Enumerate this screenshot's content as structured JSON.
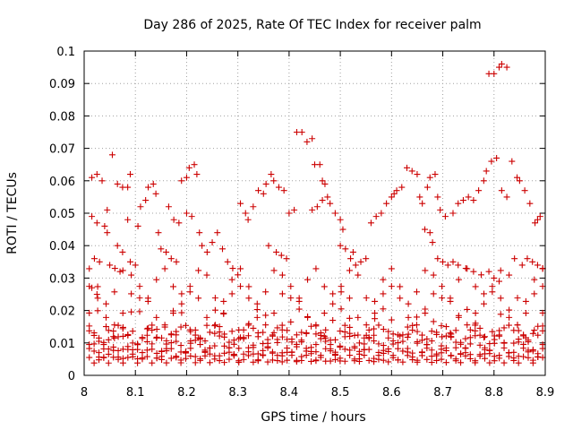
{
  "chart_data": {
    "type": "scatter",
    "title": "Day 286 of 2025, Rate Of TEC Index for receiver palm",
    "xlabel": "GPS time / hours",
    "ylabel": "ROTI / TECUs",
    "xlim": [
      8.0,
      8.9
    ],
    "ylim": [
      0.0,
      0.1
    ],
    "xticks": [
      "8",
      "8.1",
      "8.2",
      "8.3",
      "8.4",
      "8.5",
      "8.6",
      "8.7",
      "8.8",
      "8.9"
    ],
    "yticks": [
      "0",
      "0.01",
      "0.02",
      "0.03",
      "0.04",
      "0.05",
      "0.06",
      "0.07",
      "0.08",
      "0.09",
      "0.1"
    ],
    "grid": true,
    "marker": "+",
    "color": "#cc0000",
    "series": [
      {
        "values": [
          [
            8.015,
            0.061
          ],
          [
            8.025,
            0.062
          ],
          [
            8.035,
            0.06
          ],
          [
            8.015,
            0.049
          ],
          [
            8.025,
            0.047
          ],
          [
            8.04,
            0.046
          ],
          [
            8.045,
            0.044
          ],
          [
            8.02,
            0.036
          ],
          [
            8.03,
            0.035
          ],
          [
            8.05,
            0.034
          ],
          [
            8.06,
            0.033
          ],
          [
            8.07,
            0.032
          ],
          [
            8.015,
            0.027
          ],
          [
            8.025,
            0.025
          ],
          [
            8.045,
            0.051
          ],
          [
            8.055,
            0.068
          ],
          [
            8.065,
            0.059
          ],
          [
            8.075,
            0.058
          ],
          [
            8.085,
            0.058
          ],
          [
            8.09,
            0.062
          ],
          [
            8.085,
            0.048
          ],
          [
            8.065,
            0.04
          ],
          [
            8.075,
            0.038
          ],
          [
            8.09,
            0.035
          ],
          [
            8.1,
            0.034
          ],
          [
            8.105,
            0.046
          ],
          [
            8.11,
            0.052
          ],
          [
            8.12,
            0.054
          ],
          [
            8.125,
            0.058
          ],
          [
            8.135,
            0.059
          ],
          [
            8.14,
            0.056
          ],
          [
            8.145,
            0.044
          ],
          [
            8.15,
            0.039
          ],
          [
            8.16,
            0.038
          ],
          [
            8.17,
            0.036
          ],
          [
            8.18,
            0.035
          ],
          [
            8.165,
            0.052
          ],
          [
            8.175,
            0.048
          ],
          [
            8.185,
            0.047
          ],
          [
            8.19,
            0.06
          ],
          [
            8.2,
            0.061
          ],
          [
            8.205,
            0.064
          ],
          [
            8.215,
            0.065
          ],
          [
            8.22,
            0.062
          ],
          [
            8.2,
            0.05
          ],
          [
            8.21,
            0.049
          ],
          [
            8.225,
            0.044
          ],
          [
            8.23,
            0.04
          ],
          [
            8.24,
            0.038
          ],
          [
            8.25,
            0.041
          ],
          [
            8.26,
            0.044
          ],
          [
            8.27,
            0.039
          ],
          [
            8.28,
            0.035
          ],
          [
            8.29,
            0.033
          ],
          [
            8.3,
            0.031
          ],
          [
            8.305,
            0.053
          ],
          [
            8.315,
            0.05
          ],
          [
            8.32,
            0.048
          ],
          [
            8.33,
            0.052
          ],
          [
            8.34,
            0.057
          ],
          [
            8.35,
            0.056
          ],
          [
            8.355,
            0.059
          ],
          [
            8.365,
            0.062
          ],
          [
            8.37,
            0.06
          ],
          [
            8.38,
            0.058
          ],
          [
            8.39,
            0.057
          ],
          [
            8.36,
            0.04
          ],
          [
            8.375,
            0.038
          ],
          [
            8.385,
            0.037
          ],
          [
            8.395,
            0.036
          ],
          [
            8.4,
            0.05
          ],
          [
            8.41,
            0.051
          ],
          [
            8.415,
            0.075
          ],
          [
            8.425,
            0.075
          ],
          [
            8.435,
            0.072
          ],
          [
            8.445,
            0.073
          ],
          [
            8.45,
            0.065
          ],
          [
            8.46,
            0.065
          ],
          [
            8.465,
            0.06
          ],
          [
            8.47,
            0.059
          ],
          [
            8.445,
            0.051
          ],
          [
            8.455,
            0.052
          ],
          [
            8.465,
            0.054
          ],
          [
            8.475,
            0.055
          ],
          [
            8.48,
            0.053
          ],
          [
            8.49,
            0.05
          ],
          [
            8.5,
            0.048
          ],
          [
            8.505,
            0.045
          ],
          [
            8.5,
            0.04
          ],
          [
            8.51,
            0.039
          ],
          [
            8.52,
            0.036
          ],
          [
            8.525,
            0.038
          ],
          [
            8.53,
            0.034
          ],
          [
            8.54,
            0.035
          ],
          [
            8.55,
            0.036
          ],
          [
            8.56,
            0.047
          ],
          [
            8.57,
            0.049
          ],
          [
            8.58,
            0.05
          ],
          [
            8.59,
            0.053
          ],
          [
            8.6,
            0.055
          ],
          [
            8.605,
            0.056
          ],
          [
            8.61,
            0.057
          ],
          [
            8.62,
            0.058
          ],
          [
            8.63,
            0.064
          ],
          [
            8.64,
            0.063
          ],
          [
            8.65,
            0.062
          ],
          [
            8.655,
            0.055
          ],
          [
            8.66,
            0.053
          ],
          [
            8.67,
            0.058
          ],
          [
            8.675,
            0.061
          ],
          [
            8.685,
            0.062
          ],
          [
            8.69,
            0.055
          ],
          [
            8.695,
            0.051
          ],
          [
            8.705,
            0.049
          ],
          [
            8.665,
            0.045
          ],
          [
            8.675,
            0.044
          ],
          [
            8.68,
            0.041
          ],
          [
            8.69,
            0.036
          ],
          [
            8.7,
            0.035
          ],
          [
            8.71,
            0.034
          ],
          [
            8.72,
            0.05
          ],
          [
            8.73,
            0.053
          ],
          [
            8.74,
            0.054
          ],
          [
            8.75,
            0.055
          ],
          [
            8.76,
            0.054
          ],
          [
            8.77,
            0.057
          ],
          [
            8.78,
            0.06
          ],
          [
            8.785,
            0.063
          ],
          [
            8.795,
            0.066
          ],
          [
            8.805,
            0.067
          ],
          [
            8.79,
            0.093
          ],
          [
            8.8,
            0.093
          ],
          [
            8.81,
            0.095
          ],
          [
            8.815,
            0.096
          ],
          [
            8.825,
            0.095
          ],
          [
            8.815,
            0.057
          ],
          [
            8.825,
            0.055
          ],
          [
            8.835,
            0.066
          ],
          [
            8.845,
            0.061
          ],
          [
            8.85,
            0.06
          ],
          [
            8.86,
            0.057
          ],
          [
            8.87,
            0.053
          ],
          [
            8.88,
            0.047
          ],
          [
            8.885,
            0.048
          ],
          [
            8.89,
            0.049
          ],
          [
            8.84,
            0.036
          ],
          [
            8.855,
            0.034
          ],
          [
            8.865,
            0.036
          ],
          [
            8.875,
            0.035
          ],
          [
            8.885,
            0.034
          ],
          [
            8.895,
            0.033
          ],
          [
            8.72,
            0.035
          ],
          [
            8.73,
            0.034
          ],
          [
            8.745,
            0.033
          ],
          [
            8.76,
            0.032
          ],
          [
            8.775,
            0.031
          ],
          [
            8.79,
            0.032
          ],
          [
            8.8,
            0.03
          ],
          [
            8.81,
            0.029
          ]
        ]
      }
    ]
  }
}
